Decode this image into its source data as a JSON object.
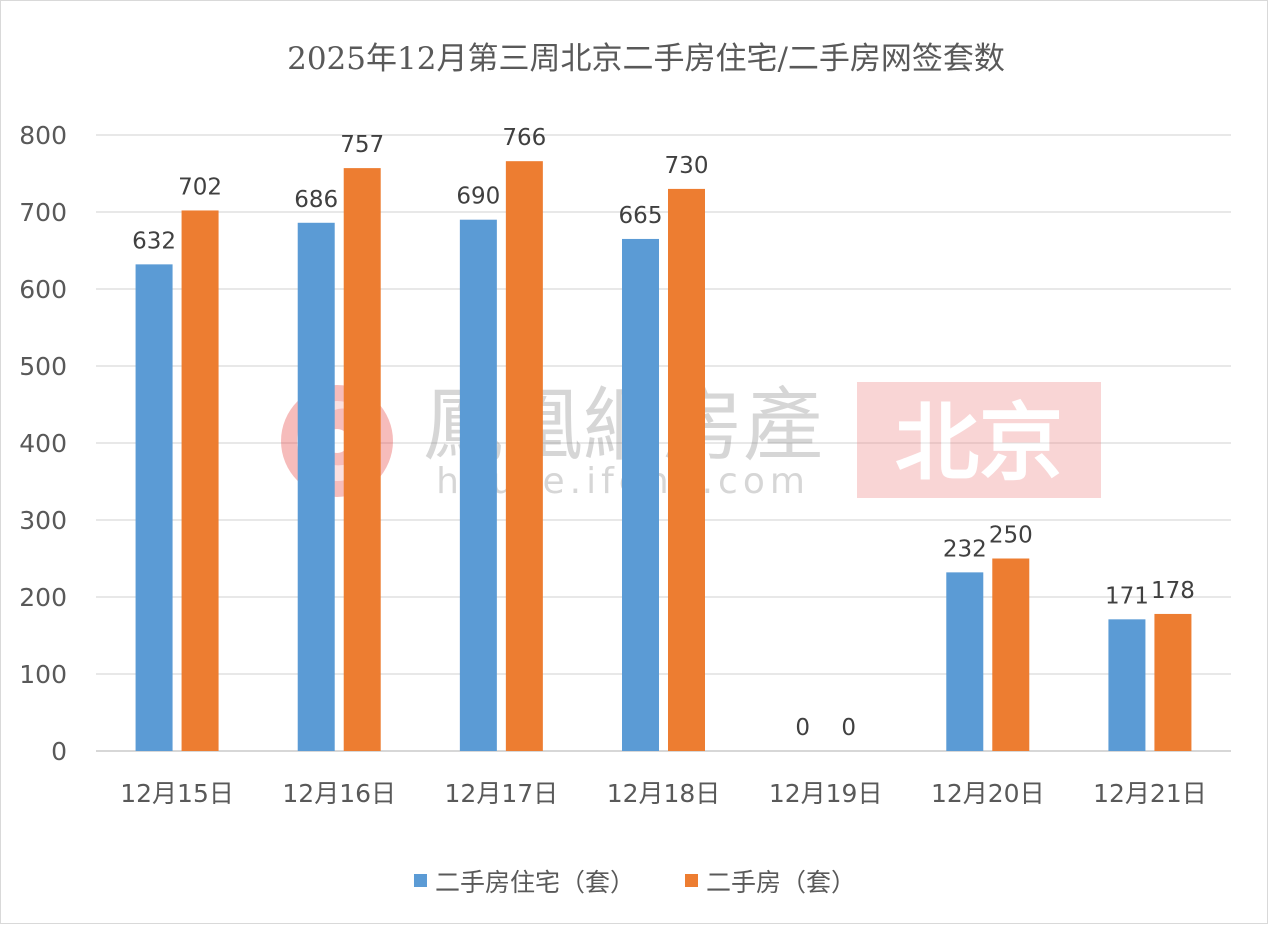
{
  "chart_data": {
    "type": "bar",
    "title": "2025年12月第三周北京二手房住宅/二手房网签套数",
    "categories": [
      "12月15日",
      "12月16日",
      "12月17日",
      "12月18日",
      "12月19日",
      "12月20日",
      "12月21日"
    ],
    "series": [
      {
        "name": "二手房住宅（套）",
        "color": "#5b9bd5",
        "values": [
          632,
          686,
          690,
          665,
          0,
          232,
          171
        ]
      },
      {
        "name": "二手房（套）",
        "color": "#ed7d31",
        "values": [
          702,
          757,
          766,
          730,
          0,
          250,
          178
        ]
      }
    ],
    "ylim": [
      0,
      800
    ],
    "yticks": [
      0,
      100,
      200,
      300,
      400,
      500,
      600,
      700,
      800
    ],
    "grid": true,
    "legend_position": "bottom"
  },
  "watermark": {
    "brand": "鳳凰網房產",
    "url": "house.ifeng.com",
    "city": "北京",
    "logo_icon": "ifeng-phoenix-logo-icon",
    "brand_color": "#e0201f"
  }
}
